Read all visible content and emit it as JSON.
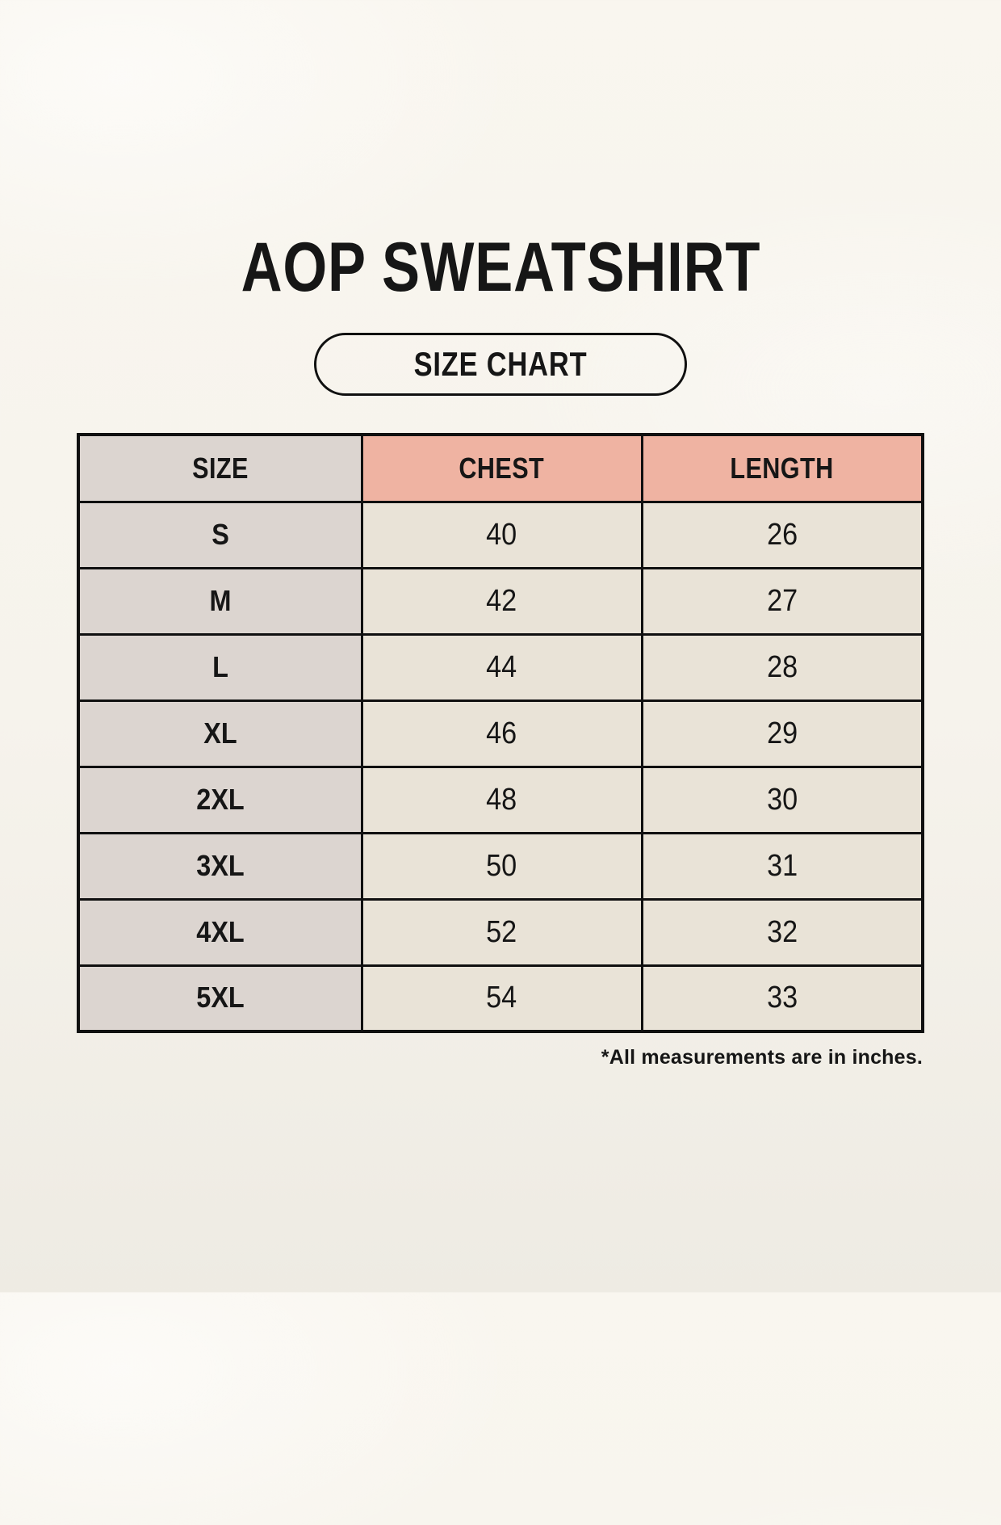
{
  "page": {
    "title": "AOP SWEATSHIRT",
    "size_chart_label": "SIZE CHART",
    "footnote": "*All measurements are in inches."
  },
  "colors": {
    "background": "#f7f4ed",
    "header_accent": "#efb3a2",
    "size_column": "#dcd5d0",
    "cell": "#e9e3d7",
    "border": "#101010",
    "text": "#161616"
  },
  "chart_data": {
    "type": "table",
    "title": "AOP SWEATSHIRT",
    "columns": [
      "SIZE",
      "CHEST",
      "LENGTH"
    ],
    "rows": [
      [
        "S",
        40,
        26
      ],
      [
        "M",
        42,
        27
      ],
      [
        "L",
        44,
        28
      ],
      [
        "XL",
        46,
        29
      ],
      [
        "2XL",
        48,
        30
      ],
      [
        "3XL",
        50,
        31
      ],
      [
        "4XL",
        52,
        32
      ],
      [
        "5XL",
        54,
        33
      ]
    ],
    "units": "inches",
    "note": "*All measurements are in inches.",
    "layout": {
      "grid": true,
      "header_background": [
        "#dcd5d0",
        "#efb3a2",
        "#efb3a2"
      ]
    }
  }
}
